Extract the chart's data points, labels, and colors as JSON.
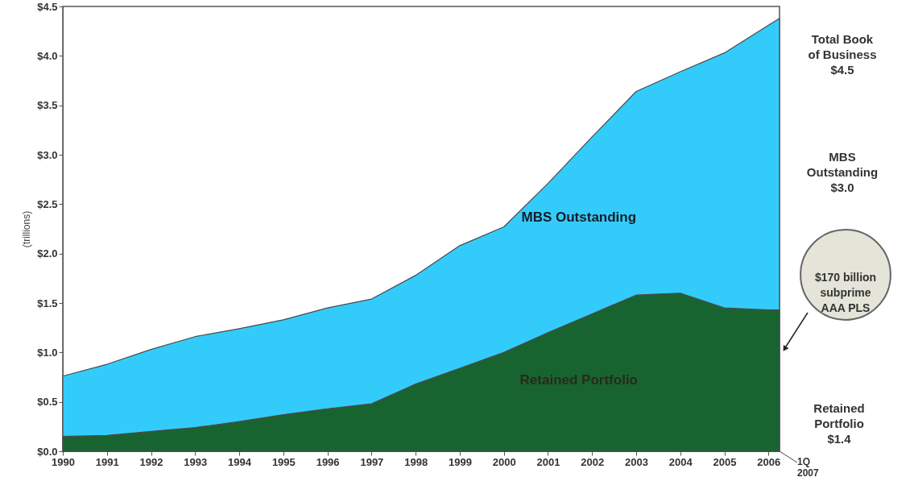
{
  "chart_data": {
    "type": "area",
    "stacked": true,
    "ylabel": "(trillions)",
    "x": [
      1990,
      1991,
      1992,
      1993,
      1994,
      1995,
      1996,
      1997,
      1998,
      1999,
      2000,
      2001,
      2002,
      2003,
      2004,
      2005,
      2006,
      2006.25
    ],
    "series": [
      {
        "name": "Retained Portfolio",
        "color": "#186430",
        "values": [
          0.15,
          0.16,
          0.2,
          0.24,
          0.3,
          0.37,
          0.43,
          0.48,
          0.68,
          0.84,
          1.0,
          1.2,
          1.39,
          1.58,
          1.6,
          1.45,
          1.43,
          1.43
        ]
      },
      {
        "name": "MBS Outstanding",
        "color": "#33ccfa",
        "values": [
          0.61,
          0.72,
          0.83,
          0.92,
          0.94,
          0.96,
          1.02,
          1.06,
          1.1,
          1.24,
          1.27,
          1.51,
          1.79,
          2.06,
          2.24,
          2.58,
          2.88,
          2.95
        ]
      }
    ],
    "xlim": [
      1990,
      2006.25
    ],
    "xticks": [
      1990,
      1991,
      1992,
      1993,
      1994,
      1995,
      1996,
      1997,
      1998,
      1999,
      2000,
      2001,
      2002,
      2003,
      2004,
      2005,
      2006
    ],
    "ylim": [
      0,
      4.5
    ],
    "yticks": [
      {
        "value": 0,
        "label": "$0.0"
      },
      {
        "value": 0.5,
        "label": "$0.5"
      },
      {
        "value": 1,
        "label": "$1.0"
      },
      {
        "value": 1.5,
        "label": "$1.5"
      },
      {
        "value": 2,
        "label": "$2.0"
      },
      {
        "value": 2.5,
        "label": "$2.5"
      },
      {
        "value": 3,
        "label": "$3.0"
      },
      {
        "value": 3.5,
        "label": "$3.5"
      },
      {
        "value": 4,
        "label": "$4.0"
      },
      {
        "value": 4.5,
        "label": "$4.5"
      }
    ],
    "grid": false,
    "annotations": [
      "Total Book\nof Business\n$4.5",
      "MBS\nOutstanding\n$3.0",
      "$170 billion\nsubprime\nAAA PLS",
      "Retained\nPortfolio\n$1.4",
      {
        "text": "1Q 2007",
        "x": 2006.25,
        "y": 0
      }
    ]
  }
}
